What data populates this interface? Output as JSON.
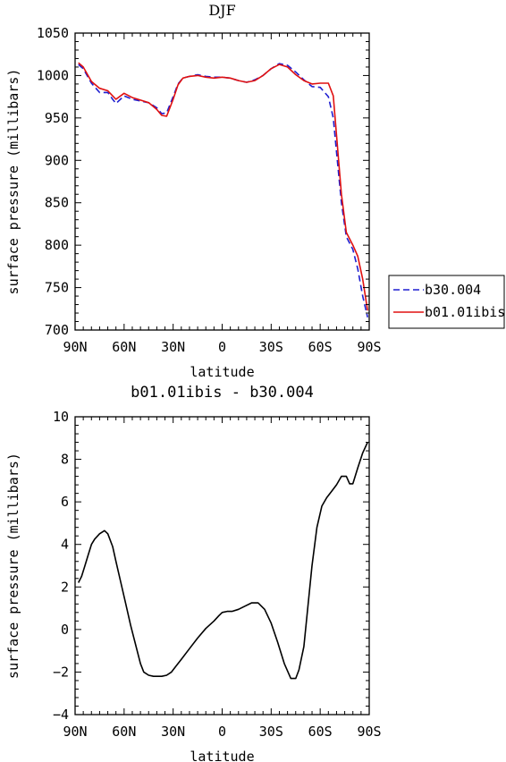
{
  "chart_data": [
    {
      "type": "line",
      "title": "DJF",
      "xlabel": "latitude",
      "ylabel": "surface pressure (millibars)",
      "xlim": [
        90,
        -90
      ],
      "ylim": [
        700,
        1050
      ],
      "xticks": [
        90,
        60,
        30,
        0,
        -30,
        -60,
        -90
      ],
      "xtick_labels": [
        "90N",
        "60N",
        "30N",
        "0",
        "30S",
        "60S",
        "90S"
      ],
      "yticks": [
        700,
        750,
        800,
        850,
        900,
        950,
        1000,
        1050
      ],
      "ytick_labels": [
        "700",
        "750",
        "800",
        "850",
        "900",
        "950",
        "1000",
        "1050"
      ],
      "grid": false,
      "legend": "right",
      "series": [
        {
          "name": "b30.004",
          "color": "#1f1fd0",
          "dash": "dashed",
          "x": [
            88,
            85,
            80,
            75,
            70,
            67,
            65,
            60,
            55,
            50,
            45,
            40,
            37,
            34,
            30,
            27,
            24,
            20,
            15,
            10,
            5,
            0,
            -5,
            -10,
            -15,
            -20,
            -25,
            -30,
            -35,
            -40,
            -45,
            -50,
            -55,
            -60,
            -65,
            -68,
            -70,
            -73,
            -76,
            -80,
            -83,
            -86,
            -89
          ],
          "values": [
            1013,
            1008,
            991,
            980,
            980,
            972,
            967,
            976,
            972,
            970,
            968,
            962,
            955,
            956,
            975,
            990,
            997,
            999,
            1001,
            999,
            998,
            998,
            997,
            994,
            992,
            995,
            1000,
            1008,
            1014,
            1012,
            1004,
            995,
            987,
            986,
            975,
            950,
            910,
            850,
            810,
            795,
            772,
            740,
            715
          ]
        },
        {
          "name": "b01.01ibis",
          "color": "#e01010",
          "dash": "solid",
          "x": [
            88,
            85,
            80,
            75,
            70,
            67,
            65,
            60,
            55,
            50,
            45,
            40,
            37,
            34,
            30,
            27,
            24,
            20,
            15,
            10,
            5,
            0,
            -5,
            -10,
            -15,
            -20,
            -25,
            -30,
            -35,
            -40,
            -45,
            -50,
            -55,
            -60,
            -65,
            -68,
            -70,
            -73,
            -76,
            -80,
            -83,
            -86,
            -89
          ],
          "values": [
            1015,
            1010,
            993,
            985,
            982,
            976,
            972,
            979,
            974,
            971,
            968,
            960,
            953,
            952,
            972,
            989,
            997,
            999,
            1000,
            998,
            997,
            998,
            997,
            994,
            992,
            994,
            1000,
            1008,
            1013,
            1010,
            1001,
            994,
            990,
            991,
            991,
            976,
            930,
            860,
            815,
            800,
            787,
            760,
            723
          ]
        }
      ]
    },
    {
      "type": "line",
      "title": "b01.01ibis - b30.004",
      "xlabel": "latitude",
      "ylabel": "surface pressure (millibars)",
      "xlim": [
        90,
        -90
      ],
      "ylim": [
        -4,
        10
      ],
      "xticks": [
        90,
        60,
        30,
        0,
        -30,
        -60,
        -90
      ],
      "xtick_labels": [
        "90N",
        "60N",
        "30N",
        "0",
        "30S",
        "60S",
        "90S"
      ],
      "yticks": [
        -4,
        -2,
        0,
        2,
        4,
        6,
        8,
        10
      ],
      "ytick_labels": [
        "−4",
        "−2",
        "0",
        "2",
        "4",
        "6",
        "8",
        "10"
      ],
      "grid": false,
      "series": [
        {
          "color": "#000000",
          "dash": "solid",
          "x": [
            88,
            86,
            84,
            82,
            80,
            78,
            75,
            72,
            70,
            67,
            65,
            62,
            59,
            56,
            53,
            50,
            48,
            45,
            42,
            40,
            37,
            34,
            31,
            28,
            25,
            20,
            15,
            10,
            5,
            2,
            0,
            -3,
            -6,
            -10,
            -14,
            -18,
            -22,
            -26,
            -30,
            -34,
            -38,
            -42,
            -45,
            -47,
            -50,
            -52,
            -55,
            -58,
            -61,
            -64,
            -67,
            -70,
            -73,
            -76,
            -78,
            -80,
            -83,
            -86,
            -89
          ],
          "values": [
            2.2,
            2.5,
            3.0,
            3.5,
            4.0,
            4.25,
            4.5,
            4.65,
            4.5,
            3.9,
            3.2,
            2.2,
            1.2,
            0.2,
            -0.7,
            -1.6,
            -2.0,
            -2.15,
            -2.2,
            -2.2,
            -2.2,
            -2.15,
            -2.0,
            -1.7,
            -1.4,
            -0.9,
            -0.4,
            0.05,
            0.4,
            0.65,
            0.8,
            0.85,
            0.85,
            0.95,
            1.1,
            1.25,
            1.25,
            0.95,
            0.3,
            -0.6,
            -1.6,
            -2.3,
            -2.3,
            -1.9,
            -0.8,
            0.7,
            3.0,
            4.8,
            5.8,
            6.2,
            6.5,
            6.8,
            7.2,
            7.2,
            6.85,
            6.85,
            7.6,
            8.3,
            8.8
          ]
        }
      ]
    }
  ]
}
